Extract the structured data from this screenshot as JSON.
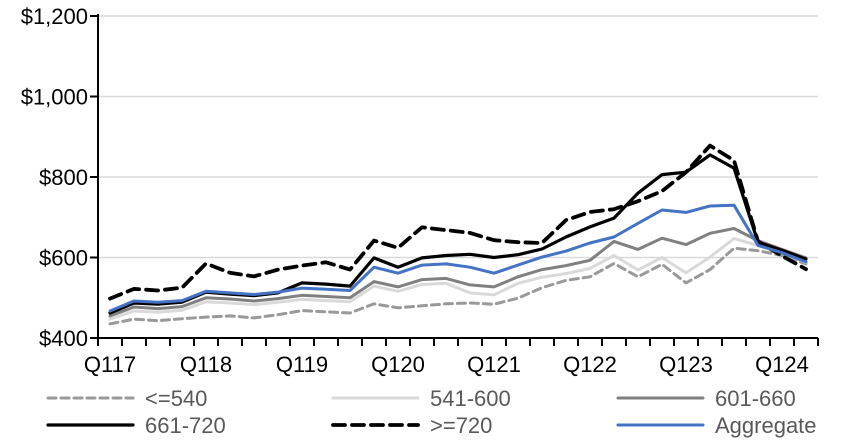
{
  "chart_data": {
    "type": "line",
    "title": "",
    "xlabel": "",
    "ylabel": "",
    "ylim": [
      400,
      1200
    ],
    "grid": "horizontal",
    "legend_position": "bottom",
    "y_ticks": [
      {
        "label": "$1,200",
        "value": 1200
      },
      {
        "label": "$1,000",
        "value": 1000
      },
      {
        "label": "$800",
        "value": 800
      },
      {
        "label": "$600",
        "value": 600
      },
      {
        "label": "$400",
        "value": 400
      }
    ],
    "x_year_labels": [
      "Q117",
      "Q118",
      "Q119",
      "Q120",
      "Q121",
      "Q122",
      "Q123",
      "Q124"
    ],
    "categories": [
      "Q117",
      "Q217",
      "Q317",
      "Q417",
      "Q118",
      "Q218",
      "Q318",
      "Q418",
      "Q119",
      "Q219",
      "Q319",
      "Q419",
      "Q120",
      "Q220",
      "Q320",
      "Q420",
      "Q121",
      "Q221",
      "Q321",
      "Q421",
      "Q122",
      "Q222",
      "Q322",
      "Q422",
      "Q123",
      "Q223",
      "Q323",
      "Q423",
      "Q124",
      "Q224"
    ],
    "series": [
      {
        "id": "le-540",
        "name": "<=540",
        "color_key": "gray_dashed",
        "dash": "8 5",
        "width": 3,
        "values": [
          435,
          447,
          443,
          448,
          452,
          455,
          450,
          458,
          468,
          465,
          462,
          485,
          475,
          480,
          485,
          487,
          484,
          499,
          525,
          543,
          552,
          585,
          552,
          583,
          537,
          570,
          623,
          617,
          605,
          584
        ]
      },
      {
        "id": "541-600",
        "name": "541-600",
        "color_key": "gray_light",
        "dash": null,
        "width": 3,
        "values": [
          447,
          467,
          464,
          469,
          490,
          487,
          483,
          489,
          496,
          493,
          490,
          529,
          516,
          533,
          536,
          512,
          507,
          536,
          551,
          560,
          573,
          605,
          569,
          600,
          562,
          601,
          647,
          630,
          612,
          588
        ]
      },
      {
        "id": "601-660",
        "name": "601-660",
        "color_key": "gray_dark",
        "dash": null,
        "width": 3,
        "values": [
          455,
          477,
          473,
          478,
          500,
          497,
          492,
          498,
          506,
          503,
          500,
          540,
          527,
          545,
          548,
          532,
          527,
          552,
          570,
          580,
          593,
          640,
          620,
          648,
          632,
          660,
          672,
          642,
          620,
          599
        ]
      },
      {
        "id": "661-720",
        "name": "661-720",
        "color_key": "black",
        "dash": null,
        "width": 3.2,
        "values": [
          462,
          487,
          484,
          489,
          514,
          509,
          505,
          512,
          537,
          534,
          529,
          599,
          576,
          599,
          605,
          608,
          600,
          607,
          621,
          651,
          676,
          698,
          760,
          806,
          812,
          855,
          822,
          638,
          618,
          596
        ]
      },
      {
        "id": "ge-720",
        "name": ">=720",
        "color_key": "black",
        "dash": "12 7",
        "width": 3.8,
        "values": [
          498,
          522,
          518,
          525,
          585,
          562,
          553,
          570,
          580,
          588,
          570,
          642,
          624,
          675,
          668,
          661,
          643,
          638,
          636,
          693,
          713,
          720,
          740,
          765,
          812,
          878,
          841,
          640,
          604,
          571
        ]
      },
      {
        "id": "aggregate",
        "name": "Aggregate",
        "color_key": "aggregate",
        "dash": null,
        "width": 3,
        "values": [
          467,
          492,
          489,
          493,
          516,
          512,
          508,
          514,
          524,
          521,
          518,
          576,
          561,
          581,
          584,
          576,
          561,
          581,
          601,
          616,
          636,
          651,
          685,
          718,
          712,
          728,
          730,
          630,
          612,
          589
        ]
      }
    ],
    "colors": {
      "aggregate": "#4472C4",
      "gray_dark": "#808080",
      "gray_light": "#D9D9D9",
      "gray_dashed": "#999999",
      "black": "#000000",
      "gridline": "#D9D9D9",
      "axis": "#000000",
      "axis_text": "#000000",
      "legend_text": "#595959"
    }
  }
}
